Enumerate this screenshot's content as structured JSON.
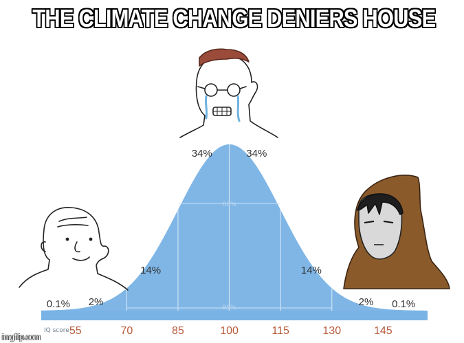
{
  "meme": {
    "title": "THE CLIMATE CHANGE DENIERS HOUSE",
    "watermark": "imgflip.com"
  },
  "colors": {
    "curve_fill": "#7fb6e6",
    "axis_band": "#79b3e6",
    "tick_label": "#b65a3b",
    "percent_label": "#333333",
    "hood": "#8a5a2b",
    "tears": "#6fb3e0",
    "hair": "#9a4b3a"
  },
  "characters": [
    {
      "name": "left-character",
      "icon": "wojak-face"
    },
    {
      "name": "middle-character",
      "icon": "crying-nerd-face"
    },
    {
      "name": "right-character",
      "icon": "hooded-figure"
    }
  ],
  "chart_data": {
    "type": "area",
    "distribution": "normal",
    "mean": 100,
    "sd": 15,
    "xlim": [
      45,
      158
    ],
    "axis_label": "IQ score",
    "ticks": [
      55,
      70,
      85,
      100,
      115,
      130,
      145
    ],
    "band_percents": [
      {
        "label": "0.1%",
        "x": 50
      },
      {
        "label": "2%",
        "x": 61
      },
      {
        "label": "14%",
        "x": 77
      },
      {
        "label": "34%",
        "x": 92
      },
      {
        "label": "34%",
        "x": 108
      },
      {
        "label": "14%",
        "x": 124
      },
      {
        "label": "2%",
        "x": 140
      },
      {
        "label": "0.1%",
        "x": 151
      }
    ],
    "inner_labels": [
      {
        "label": "68%",
        "x": 100
      },
      {
        "label": "95%",
        "x": 100
      }
    ]
  }
}
